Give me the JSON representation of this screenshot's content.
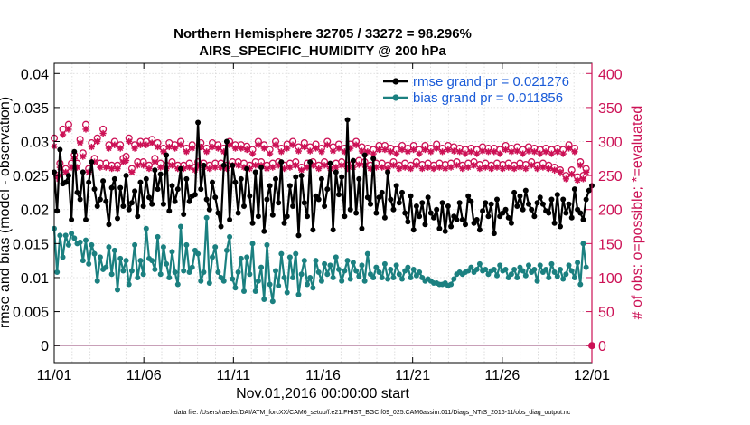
{
  "title": "Northern Hemisphere 32705 / 33272 = 98.296%",
  "subtitle": "AIRS_SPECIFIC_HUMIDITY @ 200 hPa",
  "footer": "data file: /Users/raeder/DAI/ATM_forcXX/CAM6_setup/f.e21.FHIST_BGC.f09_025.CAM6assim.011/Diags_NTrS_2016-11/obs_diag_output.nc",
  "colors": {
    "rmse": "#000000",
    "bias": "#1b8080",
    "obs": "#cc1155",
    "grid": "#d6d6d6",
    "legend_text": "#1a5bd8",
    "zero_line": "#c8a0b8"
  },
  "chart_data": {
    "type": "line",
    "title": "Northern Hemisphere 32705 / 33272 = 98.296%",
    "subtitle": "AIRS_SPECIFIC_HUMIDITY @ 200 hPa",
    "xlabel": "Nov.01,2016 00:00:00 start",
    "ylabel_left": "rmse and bias (model - observation)",
    "ylabel_right": "# of obs: o=possible; *=evaluated",
    "ylim_left": [
      -0.0025,
      0.0415
    ],
    "ylim_right": [
      -25,
      415
    ],
    "xlim": [
      0,
      30
    ],
    "x_ticks": [
      0,
      5,
      10,
      15,
      20,
      25,
      30
    ],
    "x_tick_labels": [
      "11/01",
      "11/06",
      "11/11",
      "11/16",
      "11/21",
      "11/26",
      "12/01"
    ],
    "y_left_ticks": [
      0,
      0.005,
      0.01,
      0.015,
      0.02,
      0.025,
      0.03,
      0.035,
      0.04
    ],
    "y_left_tick_labels": [
      "0",
      "0.005",
      "0.01",
      "0.015",
      "0.02",
      "0.025",
      "0.03",
      "0.035",
      "0.04"
    ],
    "y_right_ticks": [
      0,
      50,
      100,
      150,
      200,
      250,
      300,
      350,
      400
    ],
    "y_right_tick_labels": [
      "0",
      "50",
      "100",
      "150",
      "200",
      "250",
      "300",
      "350",
      "400"
    ],
    "grid": true,
    "legend_position": "top-right",
    "series": [
      {
        "name": "rmse grand pr = 0.021276",
        "axis": "left",
        "marker": "filled-circle",
        "color": "#000000",
        "values": [
          0.0255,
          0.0198,
          0.0288,
          0.0238,
          0.024,
          0.025,
          0.0185,
          0.0285,
          0.0225,
          0.0215,
          0.0255,
          0.0185,
          0.024,
          0.027,
          0.023,
          0.0205,
          0.0215,
          0.0242,
          0.0212,
          0.0178,
          0.0232,
          0.0245,
          0.0187,
          0.0232,
          0.0205,
          0.025,
          0.02,
          0.021,
          0.0227,
          0.019,
          0.024,
          0.0205,
          0.0245,
          0.0218,
          0.0208,
          0.0258,
          0.023,
          0.0252,
          0.0208,
          0.028,
          0.0198,
          0.0235,
          0.0212,
          0.023,
          0.026,
          0.0193,
          0.0245,
          0.0212,
          0.022,
          0.0222,
          0.0328,
          0.023,
          0.0265,
          0.0215,
          0.02,
          0.024,
          0.0218,
          0.0195,
          0.0175,
          0.0265,
          0.03,
          0.0185,
          0.0265,
          0.024,
          0.0195,
          0.0245,
          0.0205,
          0.026,
          0.022,
          0.018,
          0.0255,
          0.019,
          0.0262,
          0.0168,
          0.0215,
          0.0235,
          0.0192,
          0.0245,
          0.021,
          0.027,
          0.018,
          0.019,
          0.0235,
          0.0205,
          0.0248,
          0.0162,
          0.025,
          0.021,
          0.019,
          0.027,
          0.017,
          0.022,
          0.0215,
          0.0245,
          0.0205,
          0.023,
          0.0268,
          0.017,
          0.0255,
          0.0222,
          0.0248,
          0.019,
          0.0332,
          0.02,
          0.0272,
          0.0195,
          0.0245,
          0.0172,
          0.028,
          0.0218,
          0.0208,
          0.0275,
          0.0195,
          0.0218,
          0.0225,
          0.0188,
          0.0255,
          0.0215,
          0.02,
          0.0235,
          0.021,
          0.0225,
          0.0195,
          0.0182,
          0.022,
          0.017,
          0.0205,
          0.019,
          0.021,
          0.0178,
          0.0218,
          0.0195,
          0.0188,
          0.02,
          0.0172,
          0.021,
          0.0168,
          0.0205,
          0.0175,
          0.019,
          0.0185,
          0.021,
          0.0185,
          0.0178,
          0.022,
          0.0212,
          0.018,
          0.0185,
          0.017,
          0.0198,
          0.021,
          0.019,
          0.0208,
          0.0165,
          0.0215,
          0.019,
          0.0195,
          0.02,
          0.0188,
          0.018,
          0.0225,
          0.0205,
          0.022,
          0.02,
          0.0228,
          0.0208,
          0.02,
          0.019,
          0.021,
          0.0218,
          0.0208,
          0.0198,
          0.0195,
          0.0215,
          0.018,
          0.0222,
          0.0175,
          0.0215,
          0.0195,
          0.0208,
          0.0188,
          0.023,
          0.02,
          0.0195,
          0.0185,
          0.0215,
          0.0228,
          0.0235
        ]
      },
      {
        "name": "bias grand pr = 0.011856",
        "axis": "left",
        "marker": "filled-circle",
        "color": "#1b8080",
        "values": [
          0.0172,
          0.0108,
          0.0162,
          0.013,
          0.0162,
          0.0148,
          0.0165,
          0.0158,
          0.015,
          0.0152,
          0.0125,
          0.0155,
          0.012,
          0.0148,
          0.0135,
          0.0095,
          0.013,
          0.0112,
          0.0115,
          0.0145,
          0.0105,
          0.014,
          0.0082,
          0.0128,
          0.011,
          0.0125,
          0.009,
          0.011,
          0.0148,
          0.01,
          0.0125,
          0.0105,
          0.0172,
          0.0128,
          0.0125,
          0.0112,
          0.016,
          0.0105,
          0.0145,
          0.012,
          0.01,
          0.0138,
          0.0108,
          0.009,
          0.0175,
          0.011,
          0.0148,
          0.0108,
          0.0115,
          0.014,
          0.0135,
          0.0095,
          0.0108,
          0.0188,
          0.0092,
          0.013,
          0.0145,
          0.0108,
          0.01,
          0.0095,
          0.014,
          0.016,
          0.0098,
          0.0085,
          0.0108,
          0.0128,
          0.008,
          0.013,
          0.0105,
          0.015,
          0.008,
          0.0095,
          0.0115,
          0.0068,
          0.0148,
          0.009,
          0.0065,
          0.011,
          0.0088,
          0.0135,
          0.01,
          0.0078,
          0.013,
          0.01,
          0.0135,
          0.0075,
          0.0105,
          0.0125,
          0.009,
          0.01,
          0.0085,
          0.0125,
          0.0108,
          0.0095,
          0.012,
          0.0105,
          0.0118,
          0.01,
          0.013,
          0.0112,
          0.0095,
          0.011,
          0.0125,
          0.0098,
          0.0122,
          0.011,
          0.0102,
          0.0118,
          0.0095,
          0.0135,
          0.0105,
          0.01,
          0.0115,
          0.0108,
          0.01,
          0.012,
          0.0098,
          0.0112,
          0.01,
          0.0118,
          0.0105,
          0.0098,
          0.011,
          0.0115,
          0.01,
          0.0112,
          0.0103,
          0.0108,
          0.01,
          0.0095,
          0.0098,
          0.0095,
          0.0092,
          0.0092,
          0.009,
          0.009,
          0.0092,
          0.0088,
          0.009,
          0.0098,
          0.0105,
          0.0108,
          0.0105,
          0.0108,
          0.011,
          0.0115,
          0.0108,
          0.0112,
          0.012,
          0.011,
          0.0112,
          0.0105,
          0.011,
          0.0112,
          0.0103,
          0.0118,
          0.011,
          0.0112,
          0.01,
          0.0105,
          0.0112,
          0.01,
          0.0115,
          0.011,
          0.0103,
          0.0118,
          0.0108,
          0.0112,
          0.0095,
          0.0118,
          0.0108,
          0.0112,
          0.01,
          0.012,
          0.0108,
          0.0102,
          0.0112,
          0.0098,
          0.0105,
          0.0118,
          0.011,
          0.01,
          0.0122,
          0.009,
          0.015,
          0.0115
        ]
      },
      {
        "name": "obs possible",
        "axis": "right",
        "marker": "open-circle",
        "color": "#cc1155",
        "values": [
          305,
          250,
          268,
          318,
          260,
          325,
          268,
          280,
          268,
          303,
          283,
          325,
          260,
          298,
          275,
          305,
          268,
          318,
          268,
          295,
          265,
          300,
          265,
          295,
          275,
          278,
          305,
          260,
          295,
          270,
          300,
          270,
          300,
          265,
          303,
          275,
          298,
          268,
          290,
          265,
          298,
          270,
          295,
          265,
          300,
          265,
          290,
          268,
          295,
          262,
          270,
          298,
          268,
          290,
          265,
          298,
          268,
          295,
          268,
          290,
          265,
          300,
          270,
          295,
          270,
          295,
          268,
          293,
          265,
          288,
          270,
          300,
          270,
          295,
          265,
          288,
          268,
          300,
          270,
          290,
          265,
          296,
          268,
          300,
          270,
          292,
          262,
          298,
          268,
          292,
          270,
          296,
          265,
          290,
          270,
          300,
          265,
          292,
          268,
          296,
          270,
          290,
          265,
          296,
          268,
          300,
          272,
          292,
          270,
          290,
          265,
          288,
          268,
          294,
          268,
          294,
          265,
          290,
          270,
          288,
          265,
          294,
          268,
          290,
          265,
          294,
          270,
          288,
          266,
          294,
          268,
          290,
          265,
          296,
          268,
          290,
          266,
          294,
          268,
          292,
          270,
          290,
          265,
          288,
          268,
          290,
          270,
          288,
          266,
          292,
          268,
          290,
          265,
          290,
          268,
          288,
          266,
          294,
          268,
          290,
          265,
          292,
          268,
          288,
          266,
          292,
          270,
          290,
          265,
          288,
          268,
          290,
          265,
          288,
          262,
          290,
          258,
          288,
          250,
          295,
          258,
          290,
          248,
          270,
          250,
          260
        ]
      },
      {
        "name": "obs evaluated",
        "axis": "right",
        "marker": "asterisk",
        "color": "#cc1155",
        "values": [
          293,
          248,
          262,
          310,
          255,
          318,
          262,
          275,
          262,
          298,
          278,
          318,
          255,
          292,
          270,
          300,
          262,
          312,
          262,
          290,
          260,
          295,
          260,
          290,
          270,
          272,
          300,
          255,
          290,
          265,
          295,
          265,
          295,
          260,
          298,
          270,
          292,
          262,
          285,
          260,
          292,
          265,
          290,
          260,
          295,
          260,
          285,
          262,
          290,
          258,
          265,
          292,
          262,
          285,
          260,
          292,
          262,
          290,
          262,
          285,
          260,
          295,
          265,
          290,
          265,
          290,
          262,
          288,
          260,
          282,
          265,
          295,
          265,
          290,
          260,
          282,
          262,
          295,
          265,
          285,
          260,
          290,
          262,
          295,
          265,
          286,
          258,
          292,
          262,
          286,
          265,
          290,
          260,
          285,
          265,
          295,
          260,
          286,
          262,
          290,
          265,
          285,
          260,
          290,
          262,
          295,
          266,
          286,
          265,
          285,
          260,
          282,
          262,
          288,
          262,
          288,
          260,
          285,
          265,
          282,
          260,
          288,
          262,
          285,
          260,
          288,
          265,
          282,
          260,
          288,
          262,
          285,
          260,
          290,
          262,
          285,
          260,
          288,
          262,
          286,
          265,
          285,
          260,
          282,
          262,
          285,
          265,
          282,
          260,
          286,
          262,
          285,
          260,
          285,
          262,
          282,
          260,
          288,
          262,
          285,
          260,
          286,
          262,
          282,
          260,
          286,
          265,
          285,
          260,
          282,
          262,
          285,
          260,
          282,
          258,
          285,
          255,
          282,
          245,
          290,
          252,
          285,
          243,
          265,
          245,
          255
        ]
      }
    ],
    "legend": [
      {
        "label": "rmse grand pr = 0.021276",
        "series": "rmse"
      },
      {
        "label": "bias grand pr = 0.011856",
        "series": "bias"
      }
    ]
  }
}
